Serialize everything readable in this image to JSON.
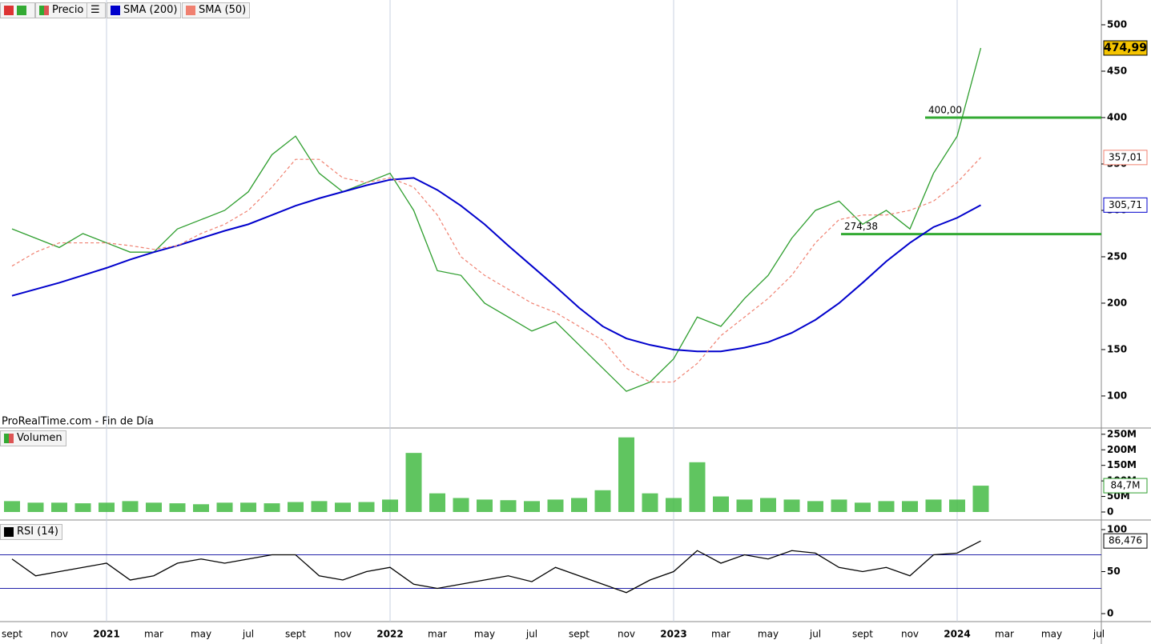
{
  "chart_data": [
    {
      "type": "line",
      "series": [
        {
          "name": "Precio",
          "color": "#2e9e2e",
          "highlight": "#f5c400",
          "values": [
            280,
            270,
            260,
            275,
            265,
            255,
            255,
            280,
            290,
            300,
            320,
            360,
            380,
            340,
            320,
            330,
            340,
            300,
            235,
            230,
            200,
            185,
            170,
            180,
            155,
            130,
            105,
            115,
            140,
            185,
            175,
            205,
            230,
            270,
            300,
            310,
            285,
            300,
            280,
            340,
            380,
            474.99,
            null,
            null,
            null,
            null,
            null
          ],
          "value_labels": [
            null,
            null,
            null,
            null,
            null,
            null,
            null,
            null,
            null,
            null,
            null,
            null,
            null,
            null,
            null,
            null,
            null,
            null,
            null,
            null,
            null,
            null,
            null,
            null,
            null,
            null,
            null,
            null,
            null,
            null,
            null,
            null,
            null,
            null,
            null,
            null,
            null,
            null,
            null,
            null,
            null,
            "474,99",
            null,
            null,
            null,
            null,
            null
          ]
        },
        {
          "name": "SMA (200)",
          "color": "#0000cc",
          "values": [
            208,
            215,
            222,
            230,
            238,
            247,
            255,
            262,
            270,
            278,
            285,
            295,
            305,
            313,
            320,
            327,
            333,
            335,
            322,
            305,
            285,
            262,
            240,
            218,
            195,
            175,
            162,
            155,
            150,
            148,
            148,
            152,
            158,
            168,
            182,
            200,
            222,
            245,
            265,
            282,
            292,
            305.71,
            null,
            null,
            null,
            null,
            null
          ],
          "value_labels": [
            null,
            null,
            null,
            null,
            null,
            null,
            null,
            null,
            null,
            null,
            null,
            null,
            null,
            null,
            null,
            null,
            null,
            null,
            null,
            null,
            null,
            null,
            null,
            null,
            null,
            null,
            null,
            null,
            null,
            null,
            null,
            null,
            null,
            null,
            null,
            null,
            null,
            null,
            null,
            null,
            null,
            "305,71",
            null,
            null,
            null,
            null,
            null
          ]
        },
        {
          "name": "SMA (50)",
          "color": "#f08070",
          "dashed": true,
          "values": [
            240,
            255,
            265,
            265,
            265,
            262,
            258,
            262,
            275,
            285,
            300,
            325,
            355,
            355,
            335,
            330,
            335,
            325,
            295,
            250,
            230,
            215,
            200,
            190,
            175,
            160,
            130,
            115,
            115,
            135,
            165,
            185,
            205,
            230,
            265,
            290,
            295,
            295,
            300,
            310,
            330,
            357.01,
            null,
            null,
            null,
            null,
            null
          ],
          "value_labels": [
            null,
            null,
            null,
            null,
            null,
            null,
            null,
            null,
            null,
            null,
            null,
            null,
            null,
            null,
            null,
            null,
            null,
            null,
            null,
            null,
            null,
            null,
            null,
            null,
            null,
            null,
            null,
            null,
            null,
            null,
            null,
            null,
            null,
            null,
            null,
            null,
            null,
            null,
            null,
            null,
            null,
            "357,01",
            null,
            null,
            null,
            null,
            null
          ]
        }
      ],
      "ylim": [
        67.2,
        522.4
      ],
      "yticks": [
        100,
        150,
        200,
        250,
        300,
        350,
        400,
        450,
        500
      ],
      "levels": [
        {
          "value": 400,
          "label": "400,00"
        },
        {
          "value": 274.38,
          "label": "274,38"
        }
      ],
      "level_color": "#33aa33",
      "source": "ProRealTime.com - Fin de Día"
    },
    {
      "type": "bar",
      "title": "Volumen",
      "color": "#44bb44",
      "values": [
        35,
        30,
        30,
        28,
        30,
        35,
        30,
        28,
        25,
        30,
        30,
        28,
        32,
        35,
        30,
        32,
        40,
        190,
        60,
        45,
        40,
        38,
        35,
        40,
        45,
        70,
        240,
        60,
        45,
        160,
        50,
        40,
        45,
        40,
        35,
        40,
        30,
        35,
        35,
        40,
        40,
        84.7,
        null,
        null,
        null,
        null,
        null
      ],
      "value_labels": [
        null,
        null,
        null,
        null,
        null,
        null,
        null,
        null,
        null,
        null,
        null,
        null,
        null,
        null,
        null,
        null,
        null,
        null,
        null,
        null,
        null,
        null,
        null,
        null,
        null,
        null,
        null,
        null,
        null,
        null,
        null,
        null,
        null,
        null,
        null,
        null,
        null,
        null,
        null,
        null,
        null,
        "84,7M",
        null,
        null,
        null,
        null,
        null
      ],
      "ylim": [
        -20.6,
        265
      ],
      "yticks": [
        {
          "value": 0,
          "label": "0"
        },
        {
          "value": 50,
          "label": "50M"
        },
        {
          "value": 100,
          "label": "100M"
        },
        {
          "value": 150,
          "label": "150M"
        },
        {
          "value": 200,
          "label": "200M"
        },
        {
          "value": 250,
          "label": "250M"
        }
      ]
    },
    {
      "type": "line",
      "title": "RSI (14)",
      "categories": [
        "sept",
        null,
        "nov",
        null,
        "2021",
        null,
        "mar",
        null,
        "may",
        null,
        "jul",
        null,
        "sept",
        null,
        "nov",
        null,
        "2022",
        null,
        "mar",
        null,
        "may",
        null,
        "jul",
        null,
        "sept",
        null,
        "nov",
        null,
        "2023",
        null,
        "mar",
        null,
        "may",
        null,
        "jul",
        null,
        "sept",
        null,
        "nov",
        null,
        "2024",
        null,
        "mar",
        null,
        "may",
        null,
        "jul"
      ],
      "series": [
        {
          "color": "#000000",
          "values": [
            65,
            45,
            50,
            55,
            60,
            40,
            45,
            60,
            65,
            60,
            65,
            70,
            70,
            45,
            40,
            50,
            55,
            35,
            30,
            35,
            40,
            45,
            38,
            55,
            45,
            35,
            25,
            40,
            50,
            75,
            60,
            70,
            65,
            75,
            72,
            55,
            50,
            55,
            45,
            70,
            72,
            86.476,
            null,
            null,
            null,
            null,
            null
          ],
          "value_labels": [
            null,
            null,
            null,
            null,
            null,
            null,
            null,
            null,
            null,
            null,
            null,
            null,
            null,
            null,
            null,
            null,
            null,
            null,
            null,
            null,
            null,
            null,
            null,
            null,
            null,
            null,
            null,
            null,
            null,
            null,
            null,
            null,
            null,
            null,
            null,
            null,
            null,
            null,
            null,
            null,
            null,
            "86,476",
            null,
            null,
            null,
            null,
            null
          ]
        }
      ],
      "ylim": [
        -7.6,
        109.5
      ],
      "yticks": [
        0,
        50,
        100
      ],
      "levels": [
        {
          "value": 70
        },
        {
          "value": 30
        }
      ],
      "level_color": "#2222aa"
    }
  ]
}
